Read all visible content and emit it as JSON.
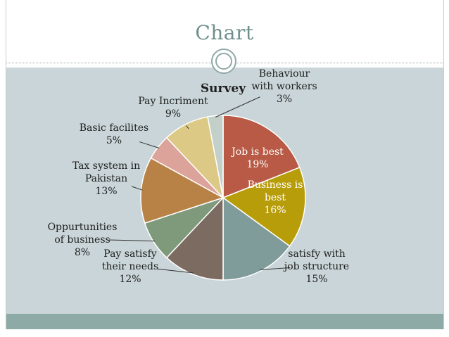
{
  "slide": {
    "title": "Chart"
  },
  "chart_data": {
    "type": "pie",
    "title": "Survey",
    "slices": [
      {
        "lines": [
          "Job is best",
          "19%"
        ],
        "value": 19,
        "color": "#b85a45",
        "inside": true,
        "anchor": [
          366,
          224
        ]
      },
      {
        "lines": [
          "Business is",
          "best",
          "16%"
        ],
        "value": 16,
        "color": "#b89d0b",
        "inside": true,
        "anchor": [
          391,
          280
        ]
      },
      {
        "lines": [
          "satisfy with",
          "job structure",
          "15%"
        ],
        "value": 15,
        "color": "#7f9c9a",
        "inside": false,
        "anchor": [
          450,
          378
        ]
      },
      {
        "lines": [
          "Pay satisfy",
          "their needs",
          "12%"
        ],
        "value": 12,
        "color": "#7c6b60",
        "inside": false,
        "anchor": [
          185,
          378
        ]
      },
      {
        "lines": [
          "Oppurtunities",
          "of business",
          "8%"
        ],
        "value": 8,
        "color": "#7f9a7b",
        "inside": false,
        "anchor": [
          117,
          340
        ]
      },
      {
        "lines": [
          "Tax system in",
          "Pakistan",
          "13%"
        ],
        "value": 13,
        "color": "#b88246",
        "inside": false,
        "anchor": [
          151,
          253
        ]
      },
      {
        "lines": [
          "Basic facilites",
          "5%"
        ],
        "value": 5,
        "color": "#dba399",
        "inside": false,
        "anchor": [
          162,
          190
        ]
      },
      {
        "lines": [
          "Pay Incriment",
          "9%"
        ],
        "value": 9,
        "color": "#dcc985",
        "inside": false,
        "anchor": [
          246,
          152
        ]
      },
      {
        "lines": [
          "Behaviour",
          "with workers",
          "3%"
        ],
        "value": 3,
        "color": "#c3cfc9",
        "inside": false,
        "anchor": [
          404,
          122
        ]
      }
    ]
  }
}
